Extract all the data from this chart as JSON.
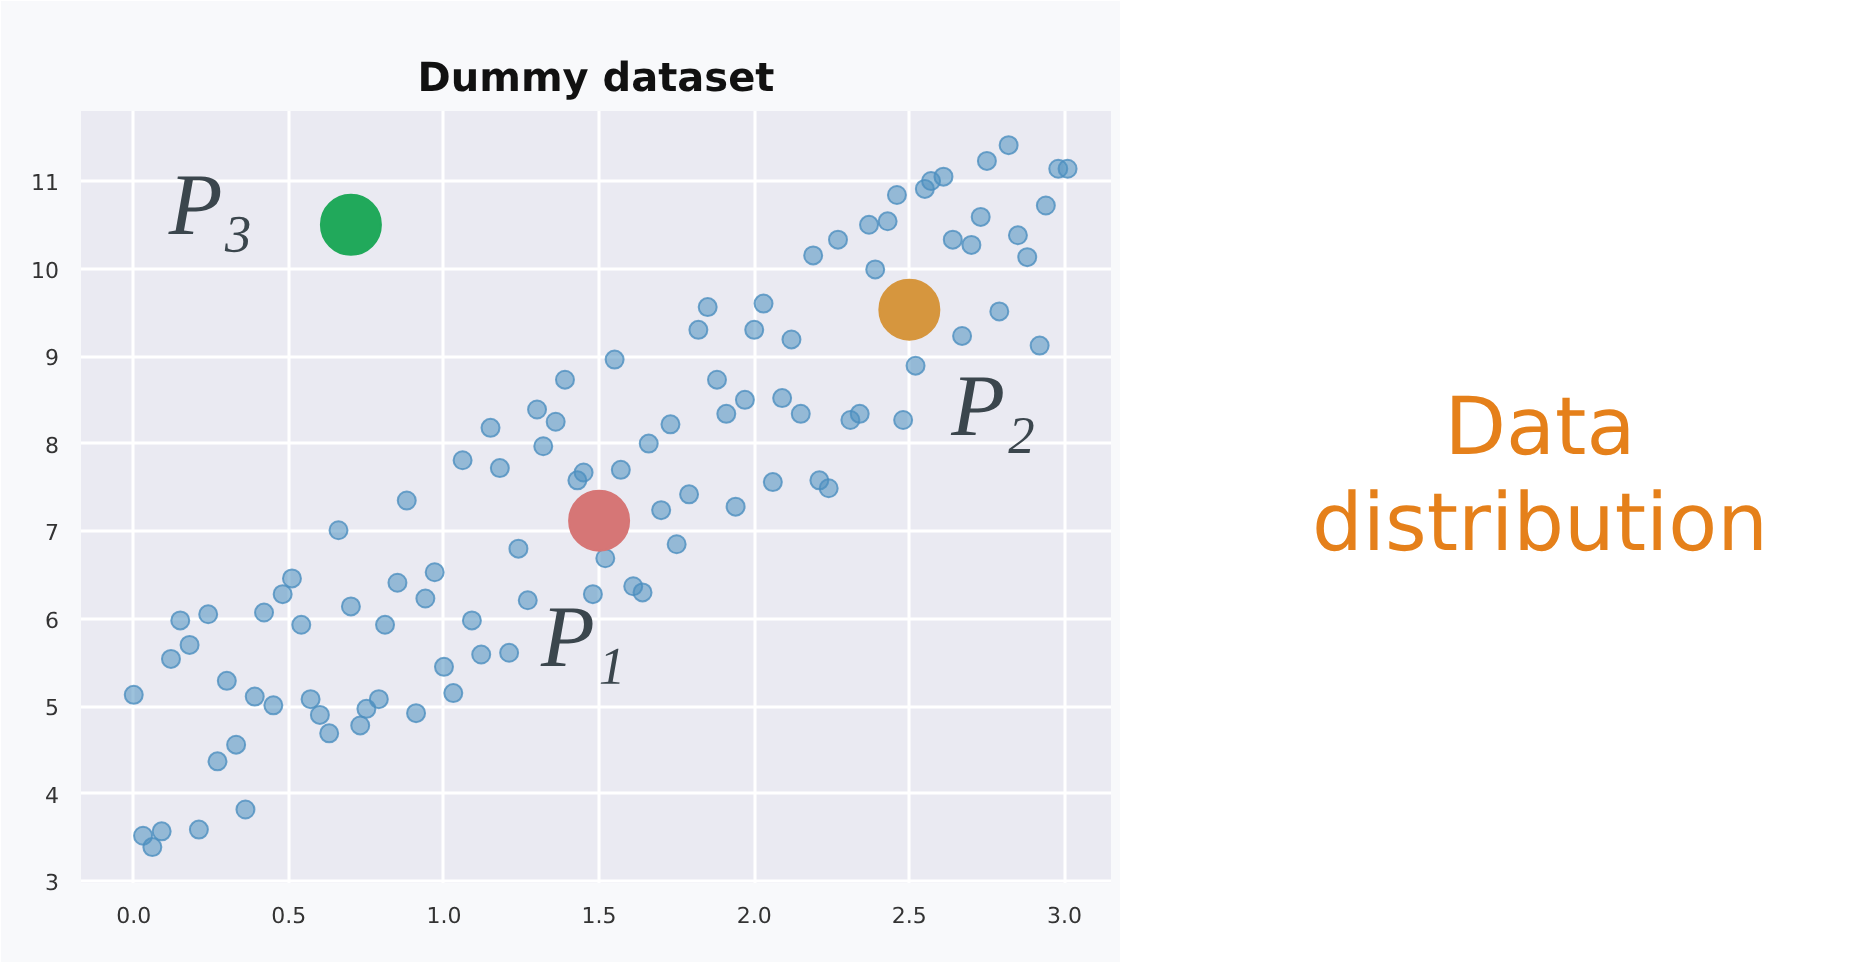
{
  "chart_data": {
    "type": "scatter",
    "title": "Dummy dataset",
    "xlim": [
      -0.17,
      3.15
    ],
    "ylim": [
      2.98,
      11.8
    ],
    "xticks": [
      {
        "value": 0,
        "label": "0.0"
      },
      {
        "value": 0.5,
        "label": "0.5"
      },
      {
        "value": 1,
        "label": "1.0"
      },
      {
        "value": 1.5,
        "label": "1.5"
      },
      {
        "value": 2,
        "label": "2.0"
      },
      {
        "value": 2.5,
        "label": "2.5"
      },
      {
        "value": 3,
        "label": "3.0"
      }
    ],
    "yticks": [
      3,
      4,
      5,
      6,
      7,
      8,
      9,
      10,
      11
    ],
    "grid": true,
    "marker": "circle",
    "series": [
      {
        "color": "#4c8fbf",
        "x": [
          0.0,
          0.03,
          0.06,
          0.09,
          0.21,
          0.12,
          0.15,
          0.18,
          0.24,
          0.27,
          0.3,
          0.33,
          0.36,
          0.39,
          0.45,
          0.42,
          0.48,
          0.51,
          0.54,
          0.57,
          0.6,
          0.63,
          0.66,
          0.7,
          0.73,
          0.75,
          0.79,
          0.81,
          0.85,
          0.88,
          0.91,
          0.94,
          0.97,
          1.0,
          1.03,
          1.06,
          1.09,
          1.12,
          1.15,
          1.18,
          1.21,
          1.24,
          1.27,
          1.3,
          1.32,
          1.36,
          1.39,
          1.43,
          1.45,
          1.48,
          1.52,
          1.55,
          1.57,
          1.61,
          1.64,
          1.66,
          1.7,
          1.73,
          1.75,
          1.79,
          1.82,
          1.85,
          1.88,
          1.91,
          1.94,
          1.97,
          2.0,
          2.03,
          2.06,
          2.09,
          2.12,
          2.15,
          2.19,
          2.21,
          2.24,
          2.27,
          2.31,
          2.34,
          2.37,
          2.39,
          2.43,
          2.46,
          2.48,
          2.52,
          2.55,
          2.57,
          2.61,
          2.64,
          2.67,
          2.7,
          2.73,
          2.75,
          2.79,
          2.82,
          2.85,
          2.88,
          2.92,
          2.94,
          2.98,
          3.01
        ],
        "values": [
          5.13,
          3.52,
          3.39,
          3.57,
          3.59,
          5.54,
          5.98,
          5.7,
          6.05,
          4.37,
          5.29,
          4.56,
          3.82,
          5.11,
          5.01,
          6.07,
          6.28,
          6.46,
          5.93,
          5.08,
          4.9,
          4.69,
          7.01,
          6.14,
          4.78,
          4.97,
          5.08,
          5.93,
          6.41,
          7.35,
          4.92,
          6.23,
          6.53,
          5.45,
          5.15,
          7.81,
          5.98,
          5.59,
          8.18,
          7.72,
          5.61,
          6.8,
          6.21,
          8.39,
          7.97,
          8.25,
          8.73,
          7.58,
          7.67,
          6.28,
          6.69,
          8.96,
          7.7,
          6.37,
          6.3,
          8.0,
          7.24,
          8.22,
          6.85,
          7.42,
          9.3,
          9.56,
          8.73,
          8.34,
          7.28,
          8.5,
          9.3,
          9.6,
          7.56,
          8.52,
          9.19,
          8.34,
          10.15,
          7.58,
          7.49,
          10.33,
          8.27,
          8.34,
          10.5,
          9.99,
          10.54,
          10.84,
          8.27,
          8.89,
          10.91,
          11.0,
          11.05,
          10.33,
          9.23,
          10.27,
          10.59,
          11.23,
          9.51,
          11.41,
          10.38,
          10.13,
          9.12,
          10.72,
          11.14,
          11.14
        ]
      },
      {
        "color": "#d67676",
        "x": [
          1.5
        ],
        "values": [
          7.12
        ]
      },
      {
        "color": "#d6963e",
        "x": [
          2.5
        ],
        "values": [
          9.53
        ]
      },
      {
        "color": "#21a95b",
        "x": [
          0.7
        ],
        "values": [
          10.5
        ]
      }
    ],
    "annotations": [
      {
        "text": "P₁",
        "x": 1.5,
        "y": 7.12
      },
      {
        "text": "P₂",
        "x": 2.5,
        "y": 9.53
      },
      {
        "text": "P₃",
        "x": 0.7,
        "y": 10.5
      },
      "Data distribution"
    ]
  }
}
